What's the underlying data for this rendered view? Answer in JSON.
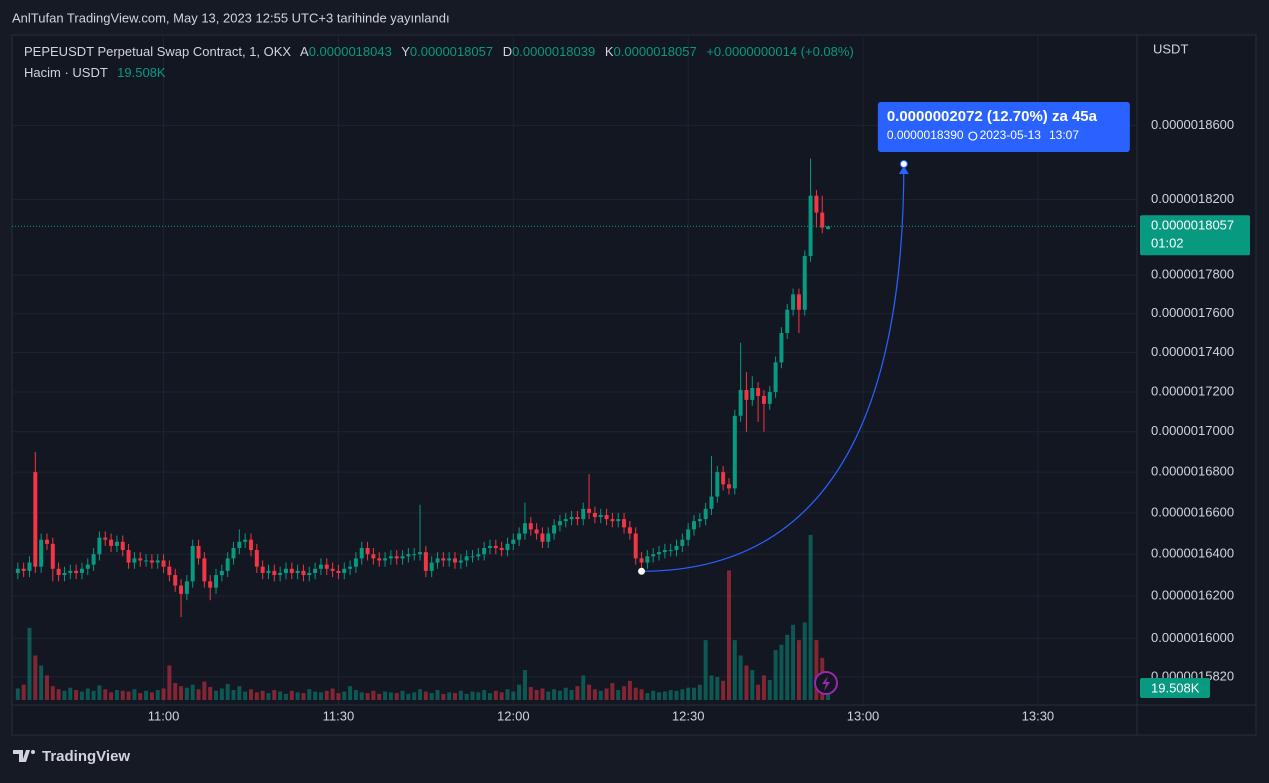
{
  "header": "AnlTufan TradingView.com, May 13, 2023 12:55 UTC+3 tarihinde yayınlandı",
  "footer": "TradingView",
  "chart_data": {
    "type": "candlestick",
    "symbol": "PEPEUSDT Perpetual Swap Contract, 1, OKX",
    "ohlc": [
      {
        "key": "A",
        "value": 1.8043e-06,
        "label": "0.0000018043"
      },
      {
        "key": "Y",
        "value": 1.8057e-06,
        "label": "0.0000018057"
      },
      {
        "key": "D",
        "value": 1.8039e-06,
        "label": "0.0000018039"
      },
      {
        "key": "K",
        "value": 1.8057e-06,
        "label": "0.0000018057"
      }
    ],
    "change": "+0.0000000014 (+0.08%)",
    "volume_title": "Hacim · USDT",
    "currency": "USDT",
    "up_color": "#089981",
    "down_color": "#f23645",
    "log_scale": true,
    "grid": true,
    "xlim": [
      "10:34",
      "13:47"
    ],
    "xticks": [
      "11:00",
      "11:30",
      "12:00",
      "12:30",
      "13:00",
      "13:30"
    ],
    "ylim": [
      1.569e-06,
      1.91e-06
    ],
    "yticks": [
      {
        "value": 1.86e-06,
        "label": "0.0000018600"
      },
      {
        "value": 1.82e-06,
        "label": "0.0000018200"
      },
      {
        "value": 1.78e-06,
        "label": "0.0000017800"
      },
      {
        "value": 1.76e-06,
        "label": "0.0000017600"
      },
      {
        "value": 1.74e-06,
        "label": "0.0000017400"
      },
      {
        "value": 1.72e-06,
        "label": "0.0000017200"
      },
      {
        "value": 1.7e-06,
        "label": "0.0000017000"
      },
      {
        "value": 1.68e-06,
        "label": "0.0000016800"
      },
      {
        "value": 1.66e-06,
        "label": "0.0000016600"
      },
      {
        "value": 1.64e-06,
        "label": "0.0000016400"
      },
      {
        "value": 1.62e-06,
        "label": "0.0000016200"
      },
      {
        "value": 1.6e-06,
        "label": "0.0000016000"
      },
      {
        "value": 1.582e-06,
        "label": "0.0000015820"
      }
    ],
    "last_price": {
      "value": 1.8057e-06,
      "label": "0.0000018057"
    },
    "countdown": "01:02",
    "last_volume": {
      "value": 19508,
      "label": "19.508K"
    },
    "projection": {
      "from_x": "12:22",
      "from_y": 1.6318e-06,
      "to_x": "13:07",
      "to_y": {
        "value": 1.839e-06,
        "label": "0.0000018390"
      },
      "change": "0.0000002072 (12.70%) za 45a",
      "date": "2023-05-13"
    },
    "x": [
      "10:35",
      "10:36",
      "10:37",
      "10:38",
      "10:39",
      "10:40",
      "10:41",
      "10:42",
      "10:43",
      "10:44",
      "10:45",
      "10:46",
      "10:47",
      "10:48",
      "10:49",
      "10:50",
      "10:51",
      "10:52",
      "10:53",
      "10:54",
      "10:55",
      "10:56",
      "10:57",
      "10:58",
      "10:59",
      "11:00",
      "11:01",
      "11:02",
      "11:03",
      "11:04",
      "11:05",
      "11:06",
      "11:07",
      "11:08",
      "11:09",
      "11:10",
      "11:11",
      "11:12",
      "11:13",
      "11:14",
      "11:15",
      "11:16",
      "11:17",
      "11:18",
      "11:19",
      "11:20",
      "11:21",
      "11:22",
      "11:23",
      "11:24",
      "11:25",
      "11:26",
      "11:27",
      "11:28",
      "11:29",
      "11:30",
      "11:31",
      "11:32",
      "11:33",
      "11:34",
      "11:35",
      "11:36",
      "11:37",
      "11:38",
      "11:39",
      "11:40",
      "11:41",
      "11:42",
      "11:43",
      "11:44",
      "11:45",
      "11:46",
      "11:47",
      "11:48",
      "11:49",
      "11:50",
      "11:51",
      "11:52",
      "11:53",
      "11:54",
      "11:55",
      "11:56",
      "11:57",
      "11:58",
      "11:59",
      "12:00",
      "12:01",
      "12:02",
      "12:03",
      "12:04",
      "12:05",
      "12:06",
      "12:07",
      "12:08",
      "12:09",
      "12:10",
      "12:11",
      "12:12",
      "12:13",
      "12:14",
      "12:15",
      "12:16",
      "12:17",
      "12:18",
      "12:19",
      "12:20",
      "12:21",
      "12:22",
      "12:23",
      "12:24",
      "12:25",
      "12:26",
      "12:27",
      "12:28",
      "12:29",
      "12:30",
      "12:31",
      "12:32",
      "12:33",
      "12:34",
      "12:35",
      "12:36",
      "12:37",
      "12:38",
      "12:39",
      "12:40",
      "12:41",
      "12:42",
      "12:43",
      "12:44",
      "12:45",
      "12:46",
      "12:47",
      "12:48",
      "12:49",
      "12:50",
      "12:51",
      "12:52",
      "12:53",
      "12:54"
    ],
    "open": [
      1.631e-06,
      1.633e-06,
      1.632e-06,
      1.68e-06,
      1.634e-06,
      1.647e-06,
      1.645e-06,
      1.633e-06,
      1.63e-06,
      1.631e-06,
      1.632e-06,
      1.631e-06,
      1.633e-06,
      1.635e-06,
      1.64e-06,
      1.648e-06,
      1.647e-06,
      1.644e-06,
      1.646e-06,
      1.642e-06,
      1.636e-06,
      1.638e-06,
      1.637e-06,
      1.637e-06,
      1.636e-06,
      1.637e-06,
      1.634e-06,
      1.63e-06,
      1.625e-06,
      1.621e-06,
      1.627e-06,
      1.644e-06,
      1.638e-06,
      1.627e-06,
      1.624e-06,
      1.63e-06,
      1.632e-06,
      1.638e-06,
      1.643e-06,
      1.646e-06,
      1.647e-06,
      1.642e-06,
      1.634e-06,
      1.631e-06,
      1.632e-06,
      1.63e-06,
      1.631e-06,
      1.633e-06,
      1.631e-06,
      1.632e-06,
      1.63e-06,
      1.631e-06,
      1.633e-06,
      1.635e-06,
      1.633e-06,
      1.632e-06,
      1.631e-06,
      1.633e-06,
      1.634e-06,
      1.638e-06,
      1.643e-06,
      1.64e-06,
      1.638e-06,
      1.637e-06,
      1.638e-06,
      1.639e-06,
      1.638e-06,
      1.639e-06,
      1.64e-06,
      1.64e-06,
      1.641e-06,
      1.632e-06,
      1.636e-06,
      1.638e-06,
      1.637e-06,
      1.638e-06,
      1.636e-06,
      1.637e-06,
      1.639e-06,
      1.639e-06,
      1.64e-06,
      1.643e-06,
      1.644e-06,
      1.643e-06,
      1.642e-06,
      1.645e-06,
      1.647e-06,
      1.65e-06,
      1.655e-06,
      1.652e-06,
      1.65e-06,
      1.646e-06,
      1.65e-06,
      1.654e-06,
      1.656e-06,
      1.657e-06,
      1.658e-06,
      1.657e-06,
      1.662e-06,
      1.66e-06,
      1.658e-06,
      1.659e-06,
      1.657e-06,
      1.656e-06,
      1.657e-06,
      1.653e-06,
      1.65e-06,
      1.638e-06,
      1.636e-06,
      1.639e-06,
      1.64e-06,
      1.641e-06,
      1.642e-06,
      1.642e-06,
      1.644e-06,
      1.647e-06,
      1.652e-06,
      1.656e-06,
      1.657e-06,
      1.662e-06,
      1.668e-06,
      1.68e-06,
      1.674e-06,
      1.672e-06,
      1.708e-06,
      1.721e-06,
      1.716e-06,
      1.722e-06,
      1.718e-06,
      1.714e-06,
      1.72e-06,
      1.735e-06,
      1.75e-06,
      1.762e-06,
      1.77e-06,
      1.762e-06,
      1.79e-06,
      1.822e-06,
      1.813e-06,
      1.8043e-06
    ],
    "high": [
      1.636e-06,
      1.636e-06,
      1.639e-06,
      1.69e-06,
      1.65e-06,
      1.65e-06,
      1.648e-06,
      1.636e-06,
      1.634e-06,
      1.635e-06,
      1.635e-06,
      1.636e-06,
      1.638e-06,
      1.643e-06,
      1.651e-06,
      1.651e-06,
      1.65e-06,
      1.649e-06,
      1.649e-06,
      1.645e-06,
      1.641e-06,
      1.641e-06,
      1.64e-06,
      1.64e-06,
      1.64e-06,
      1.64e-06,
      1.637e-06,
      1.633e-06,
      1.628e-06,
      1.63e-06,
      1.647e-06,
      1.647e-06,
      1.641e-06,
      1.63e-06,
      1.633e-06,
      1.635e-06,
      1.641e-06,
      1.646e-06,
      1.652e-06,
      1.65e-06,
      1.65e-06,
      1.645e-06,
      1.637e-06,
      1.635e-06,
      1.635e-06,
      1.634e-06,
      1.636e-06,
      1.636e-06,
      1.635e-06,
      1.635e-06,
      1.634e-06,
      1.636e-06,
      1.638e-06,
      1.638e-06,
      1.636e-06,
      1.635e-06,
      1.636e-06,
      1.637e-06,
      1.641e-06,
      1.646e-06,
      1.646e-06,
      1.643e-06,
      1.641e-06,
      1.641e-06,
      1.642e-06,
      1.642e-06,
      1.642e-06,
      1.643e-06,
      1.643e-06,
      1.664e-06,
      1.644e-06,
      1.639e-06,
      1.641e-06,
      1.641e-06,
      1.641e-06,
      1.641e-06,
      1.64e-06,
      1.642e-06,
      1.642e-06,
      1.643e-06,
      1.646e-06,
      1.647e-06,
      1.647e-06,
      1.646e-06,
      1.648e-06,
      1.65e-06,
      1.653e-06,
      1.665e-06,
      1.658e-06,
      1.655e-06,
      1.653e-06,
      1.653e-06,
      1.657e-06,
      1.659e-06,
      1.66e-06,
      1.661e-06,
      1.661e-06,
      1.665e-06,
      1.679e-06,
      1.663e-06,
      1.662e-06,
      1.662e-06,
      1.66e-06,
      1.66e-06,
      1.66e-06,
      1.656e-06,
      1.653e-06,
      1.641e-06,
      1.642e-06,
      1.643e-06,
      1.644e-06,
      1.645e-06,
      1.645e-06,
      1.647e-06,
      1.65e-06,
      1.655e-06,
      1.659e-06,
      1.66e-06,
      1.665e-06,
      1.688e-06,
      1.683e-06,
      1.683e-06,
      1.677e-06,
      1.711e-06,
      1.745e-06,
      1.73e-06,
      1.728e-06,
      1.725e-06,
      1.721e-06,
      1.723e-06,
      1.738e-06,
      1.753e-06,
      1.765e-06,
      1.773e-06,
      1.773e-06,
      1.793e-06,
      1.842e-06,
      1.825e-06,
      1.822e-06,
      1.8057e-06
    ],
    "low": [
      1.628e-06,
      1.629e-06,
      1.629e-06,
      1.631e-06,
      1.631e-06,
      1.642e-06,
      1.627e-06,
      1.627e-06,
      1.627e-06,
      1.628e-06,
      1.628e-06,
      1.628e-06,
      1.63e-06,
      1.632e-06,
      1.637e-06,
      1.644e-06,
      1.641e-06,
      1.641e-06,
      1.639e-06,
      1.633e-06,
      1.633e-06,
      1.634e-06,
      1.634e-06,
      1.633e-06,
      1.633e-06,
      1.631e-06,
      1.627e-06,
      1.622e-06,
      1.61e-06,
      1.618e-06,
      1.624e-06,
      1.635e-06,
      1.624e-06,
      1.618e-06,
      1.621e-06,
      1.627e-06,
      1.629e-06,
      1.635e-06,
      1.64e-06,
      1.643e-06,
      1.639e-06,
      1.631e-06,
      1.628e-06,
      1.628e-06,
      1.627e-06,
      1.627e-06,
      1.628e-06,
      1.628e-06,
      1.628e-06,
      1.627e-06,
      1.627e-06,
      1.628e-06,
      1.63e-06,
      1.63e-06,
      1.629e-06,
      1.628e-06,
      1.628e-06,
      1.63e-06,
      1.631e-06,
      1.635e-06,
      1.637e-06,
      1.635e-06,
      1.634e-06,
      1.634e-06,
      1.635e-06,
      1.635e-06,
      1.635e-06,
      1.636e-06,
      1.637e-06,
      1.637e-06,
      1.629e-06,
      1.629e-06,
      1.633e-06,
      1.634e-06,
      1.634e-06,
      1.633e-06,
      1.633e-06,
      1.634e-06,
      1.636e-06,
      1.637e-06,
      1.637e-06,
      1.64e-06,
      1.64e-06,
      1.639e-06,
      1.639e-06,
      1.642e-06,
      1.644e-06,
      1.647e-06,
      1.649e-06,
      1.647e-06,
      1.643e-06,
      1.643e-06,
      1.647e-06,
      1.651e-06,
      1.653e-06,
      1.654e-06,
      1.654e-06,
      1.654e-06,
      1.657e-06,
      1.655e-06,
      1.655e-06,
      1.654e-06,
      1.653e-06,
      1.653e-06,
      1.65e-06,
      1.647e-06,
      1.635e-06,
      1.631e-06,
      1.633e-06,
      1.636e-06,
      1.637e-06,
      1.638e-06,
      1.639e-06,
      1.639e-06,
      1.641e-06,
      1.644e-06,
      1.649e-06,
      1.653e-06,
      1.654e-06,
      1.659e-06,
      1.665e-06,
      1.671e-06,
      1.669e-06,
      1.669e-06,
      1.705e-06,
      1.7e-06,
      1.713e-06,
      1.705e-06,
      1.7e-06,
      1.711e-06,
      1.717e-06,
      1.732e-06,
      1.747e-06,
      1.759e-06,
      1.75e-06,
      1.759e-06,
      1.787e-06,
      1.805e-06,
      1.802e-06,
      1.8039e-06
    ],
    "close": [
      1.633e-06,
      1.632e-06,
      1.636e-06,
      1.634e-06,
      1.647e-06,
      1.645e-06,
      1.633e-06,
      1.63e-06,
      1.631e-06,
      1.632e-06,
      1.631e-06,
      1.633e-06,
      1.635e-06,
      1.64e-06,
      1.648e-06,
      1.647e-06,
      1.644e-06,
      1.646e-06,
      1.642e-06,
      1.636e-06,
      1.638e-06,
      1.637e-06,
      1.637e-06,
      1.636e-06,
      1.637e-06,
      1.634e-06,
      1.63e-06,
      1.625e-06,
      1.621e-06,
      1.627e-06,
      1.644e-06,
      1.638e-06,
      1.627e-06,
      1.624e-06,
      1.63e-06,
      1.632e-06,
      1.638e-06,
      1.643e-06,
      1.646e-06,
      1.647e-06,
      1.642e-06,
      1.634e-06,
      1.631e-06,
      1.632e-06,
      1.63e-06,
      1.631e-06,
      1.633e-06,
      1.631e-06,
      1.632e-06,
      1.63e-06,
      1.631e-06,
      1.633e-06,
      1.635e-06,
      1.633e-06,
      1.632e-06,
      1.631e-06,
      1.633e-06,
      1.634e-06,
      1.638e-06,
      1.643e-06,
      1.64e-06,
      1.638e-06,
      1.637e-06,
      1.638e-06,
      1.639e-06,
      1.638e-06,
      1.639e-06,
      1.64e-06,
      1.64e-06,
      1.641e-06,
      1.632e-06,
      1.636e-06,
      1.638e-06,
      1.637e-06,
      1.638e-06,
      1.636e-06,
      1.637e-06,
      1.639e-06,
      1.639e-06,
      1.64e-06,
      1.643e-06,
      1.644e-06,
      1.643e-06,
      1.642e-06,
      1.645e-06,
      1.647e-06,
      1.65e-06,
      1.655e-06,
      1.652e-06,
      1.65e-06,
      1.646e-06,
      1.65e-06,
      1.654e-06,
      1.656e-06,
      1.657e-06,
      1.658e-06,
      1.657e-06,
      1.662e-06,
      1.66e-06,
      1.658e-06,
      1.659e-06,
      1.657e-06,
      1.656e-06,
      1.657e-06,
      1.653e-06,
      1.65e-06,
      1.638e-06,
      1.636e-06,
      1.639e-06,
      1.64e-06,
      1.641e-06,
      1.642e-06,
      1.642e-06,
      1.644e-06,
      1.647e-06,
      1.652e-06,
      1.656e-06,
      1.657e-06,
      1.662e-06,
      1.668e-06,
      1.68e-06,
      1.674e-06,
      1.672e-06,
      1.708e-06,
      1.721e-06,
      1.716e-06,
      1.722e-06,
      1.718e-06,
      1.714e-06,
      1.72e-06,
      1.735e-06,
      1.75e-06,
      1.762e-06,
      1.77e-06,
      1.762e-06,
      1.79e-06,
      1.822e-06,
      1.813e-06,
      1.805e-06,
      1.8057e-06
    ],
    "volume": [
      15000,
      20000,
      94000,
      58000,
      45000,
      32000,
      18000,
      14000,
      12000,
      16000,
      13000,
      11000,
      15000,
      12000,
      19000,
      14000,
      10000,
      13000,
      12000,
      11000,
      14000,
      9000,
      12000,
      10000,
      13000,
      15000,
      45000,
      22000,
      18000,
      16000,
      20000,
      14000,
      24000,
      17000,
      12000,
      15000,
      21000,
      13000,
      18000,
      11000,
      14000,
      10000,
      12000,
      9000,
      13000,
      11000,
      8000,
      12000,
      10000,
      9000,
      14000,
      11000,
      10000,
      12000,
      15000,
      9000,
      11000,
      18000,
      13000,
      10000,
      9000,
      12000,
      8000,
      11000,
      10000,
      9000,
      12000,
      8000,
      10000,
      14000,
      11000,
      9000,
      13000,
      8000,
      10000,
      9000,
      12000,
      8000,
      11000,
      10000,
      13000,
      9000,
      12000,
      10000,
      14000,
      11000,
      20000,
      39000,
      17000,
      13000,
      15000,
      11000,
      14000,
      12000,
      16000,
      13000,
      18000,
      32000,
      20000,
      14000,
      12000,
      15000,
      22000,
      13000,
      18000,
      25000,
      16000,
      14000,
      9000,
      12000,
      10000,
      11000,
      13000,
      12000,
      14000,
      16000,
      16000,
      20000,
      78000,
      32000,
      30000,
      25000,
      169000,
      78000,
      58000,
      45000,
      39000,
      20000,
      32000,
      26000,
      65000,
      72000,
      85000,
      98000,
      78000,
      101000,
      215000,
      78000,
      55000,
      19508
    ]
  }
}
